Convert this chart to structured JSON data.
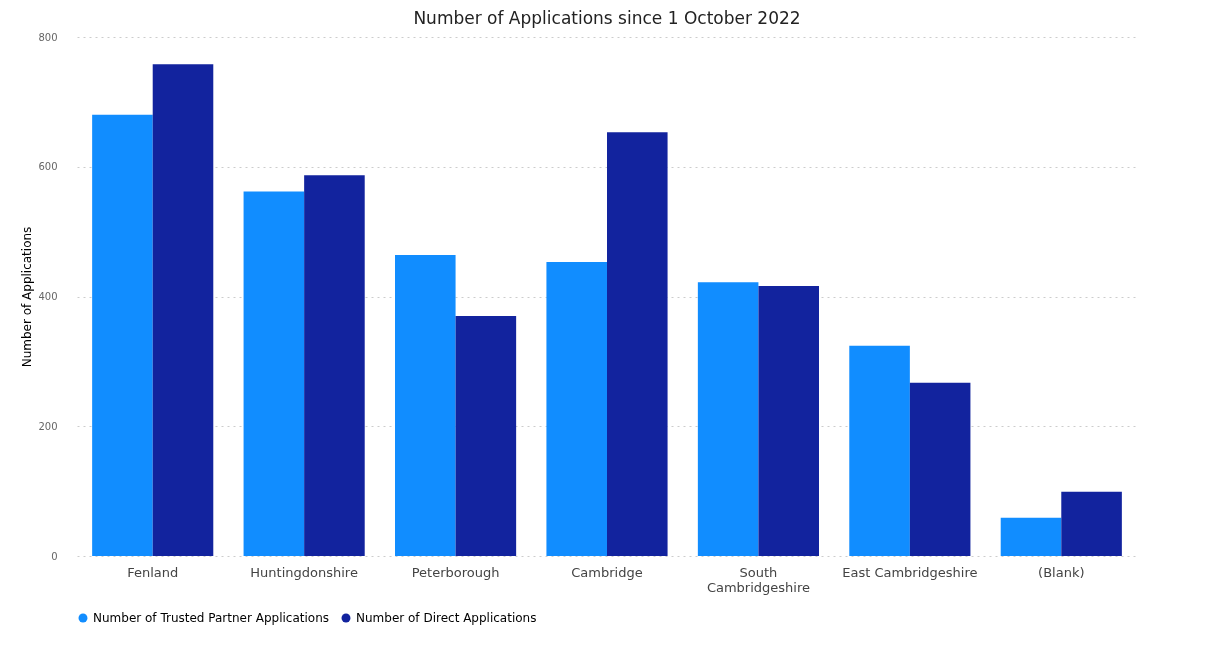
{
  "chart_data": {
    "type": "bar",
    "title": "Number of Applications since 1 October 2022",
    "ylabel": "Number of Applications",
    "categories": [
      "Fenland",
      "Huntingdonshire",
      "Peterborough",
      "Cambridge",
      "South Cambridgeshire",
      "East Cambridgeshire",
      "(Blank)"
    ],
    "series": [
      {
        "name": "Number of Trusted Partner Applications",
        "color": "#118dff",
        "values": [
          680,
          562,
          464,
          453,
          422,
          324,
          59
        ]
      },
      {
        "name": "Number of Direct Applications",
        "color": "#12239e",
        "values": [
          758,
          587,
          370,
          653,
          416,
          267,
          99
        ]
      }
    ],
    "ylim": [
      0,
      800
    ],
    "yticks": [
      0,
      200,
      400,
      600,
      800
    ],
    "grid": "y",
    "legend": "bottom"
  }
}
